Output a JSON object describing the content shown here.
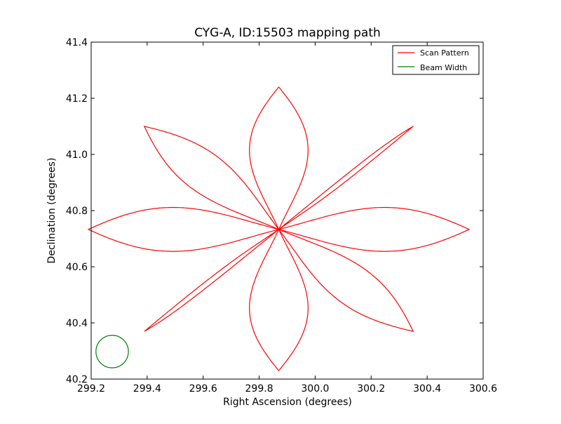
{
  "chart_data": {
    "type": "line",
    "title": "CYG-A, ID:15503 mapping path",
    "xlabel": "Right Ascension (degrees)",
    "ylabel": "Declination (degrees)",
    "xlim": [
      299.2,
      300.6
    ],
    "ylim": [
      40.2,
      41.4
    ],
    "xticks": [
      "299.2",
      "299.4",
      "299.6",
      "299.8",
      "300.0",
      "300.2",
      "300.4",
      "300.6"
    ],
    "yticks": [
      "40.2",
      "40.4",
      "40.6",
      "40.8",
      "41.0",
      "41.2",
      "41.4"
    ],
    "grid": false,
    "legend_position": "top-right",
    "center": [
      299.87,
      40.733
    ],
    "series": [
      {
        "name": "Scan Pattern",
        "color": "#ff0000",
        "petals": [
          {
            "direction_deg": 0,
            "tip": [
              300.55,
              40.733
            ],
            "half_width": [
              0.0,
              0.062
            ]
          },
          {
            "direction_deg": 45,
            "tip": [
              300.35,
              41.1
            ],
            "half_width": [
              0.041,
              0.041
            ]
          },
          {
            "direction_deg": 90,
            "tip": [
              299.87,
              41.24
            ],
            "half_width": [
              0.083,
              0.0
            ]
          },
          {
            "direction_deg": 135,
            "tip": [
              299.39,
              41.1
            ],
            "half_width": [
              0.041,
              0.041
            ]
          },
          {
            "direction_deg": 180,
            "tip": [
              299.19,
              40.733
            ],
            "half_width": [
              0.0,
              0.062
            ]
          },
          {
            "direction_deg": 225,
            "tip": [
              299.39,
              40.37
            ],
            "half_width": [
              0.041,
              0.041
            ]
          },
          {
            "direction_deg": 270,
            "tip": [
              299.87,
              40.23
            ],
            "half_width": [
              0.083,
              0.0
            ]
          },
          {
            "direction_deg": 315,
            "tip": [
              300.35,
              40.37
            ],
            "half_width": [
              0.041,
              0.041
            ]
          }
        ]
      },
      {
        "name": "Beam Width",
        "color": "#008000",
        "circle_center": [
          299.275,
          40.298
        ],
        "radius_ra": 0.058,
        "radius_dec": 0.058
      }
    ]
  }
}
